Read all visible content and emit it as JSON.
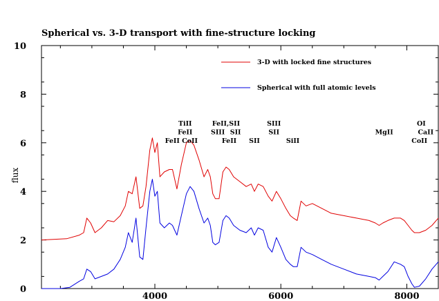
{
  "chart_data": {
    "type": "line",
    "title": "Spherical vs. 3-D transport with fine-structure locking",
    "xlabel": "",
    "ylabel": "flux",
    "xlim": [
      2200,
      8500
    ],
    "ylim": [
      0,
      10
    ],
    "x_ticks": [
      4000,
      6000,
      8000
    ],
    "y_ticks": [
      0,
      2,
      4,
      6,
      8,
      10
    ],
    "grid": false,
    "legend_position": "top-right",
    "series": [
      {
        "name": "3-D with locked fine structures",
        "color": "#e00000",
        "x": [
          2200,
          2600,
          2800,
          2870,
          2920,
          2980,
          3050,
          3150,
          3250,
          3350,
          3450,
          3530,
          3580,
          3640,
          3700,
          3760,
          3810,
          3860,
          3920,
          3960,
          4000,
          4040,
          4080,
          4150,
          4230,
          4280,
          4350,
          4420,
          4500,
          4560,
          4620,
          4700,
          4780,
          4840,
          4880,
          4920,
          4960,
          5020,
          5080,
          5130,
          5180,
          5250,
          5350,
          5450,
          5530,
          5580,
          5640,
          5720,
          5800,
          5860,
          5930,
          6000,
          6080,
          6150,
          6200,
          6260,
          6320,
          6400,
          6500,
          6650,
          6800,
          7000,
          7200,
          7400,
          7500,
          7560,
          7620,
          7700,
          7800,
          7900,
          7960,
          8020,
          8080,
          8120,
          8200,
          8300,
          8400,
          8500
        ],
        "y": [
          2.0,
          2.05,
          2.2,
          2.3,
          2.9,
          2.7,
          2.3,
          2.5,
          2.8,
          2.75,
          3.0,
          3.4,
          4.0,
          3.9,
          4.6,
          3.3,
          3.4,
          4.2,
          5.7,
          6.2,
          5.6,
          6.0,
          4.6,
          4.8,
          4.9,
          4.9,
          4.1,
          5.1,
          6.0,
          6.1,
          5.9,
          5.3,
          4.6,
          4.9,
          4.6,
          3.9,
          3.7,
          3.7,
          4.8,
          5.0,
          4.9,
          4.6,
          4.4,
          4.2,
          4.3,
          4.0,
          4.3,
          4.2,
          3.8,
          3.6,
          4.0,
          3.7,
          3.3,
          3.0,
          2.9,
          2.8,
          3.6,
          3.4,
          3.5,
          3.3,
          3.1,
          3.0,
          2.9,
          2.8,
          2.7,
          2.6,
          2.7,
          2.8,
          2.9,
          2.9,
          2.8,
          2.6,
          2.4,
          2.3,
          2.3,
          2.4,
          2.6,
          2.9
        ]
      },
      {
        "name": "Spherical with full atomic levels",
        "color": "#0000e0",
        "x": [
          2200,
          2500,
          2650,
          2800,
          2870,
          2920,
          2980,
          3050,
          3150,
          3250,
          3350,
          3450,
          3530,
          3580,
          3640,
          3700,
          3760,
          3810,
          3860,
          3920,
          3960,
          4000,
          4040,
          4080,
          4150,
          4230,
          4280,
          4350,
          4420,
          4500,
          4560,
          4620,
          4700,
          4780,
          4840,
          4880,
          4920,
          4960,
          5020,
          5080,
          5130,
          5180,
          5250,
          5350,
          5450,
          5530,
          5580,
          5640,
          5720,
          5800,
          5860,
          5930,
          6000,
          6080,
          6150,
          6200,
          6260,
          6320,
          6400,
          6500,
          6650,
          6800,
          7000,
          7200,
          7400,
          7500,
          7560,
          7620,
          7700,
          7800,
          7900,
          7960,
          8020,
          8080,
          8120,
          8200,
          8300,
          8400,
          8500
        ],
        "y": [
          0.0,
          0.0,
          0.05,
          0.3,
          0.4,
          0.8,
          0.7,
          0.4,
          0.5,
          0.6,
          0.8,
          1.2,
          1.7,
          2.3,
          1.9,
          2.9,
          1.3,
          1.2,
          2.5,
          4.0,
          4.5,
          3.8,
          4.0,
          2.7,
          2.5,
          2.7,
          2.6,
          2.2,
          3.0,
          3.9,
          4.2,
          4.0,
          3.3,
          2.7,
          2.9,
          2.6,
          1.9,
          1.8,
          1.9,
          2.8,
          3.0,
          2.9,
          2.6,
          2.4,
          2.3,
          2.5,
          2.2,
          2.5,
          2.4,
          1.7,
          1.5,
          2.1,
          1.7,
          1.2,
          1.0,
          0.9,
          0.9,
          1.7,
          1.5,
          1.4,
          1.2,
          1.0,
          0.8,
          0.6,
          0.5,
          0.45,
          0.35,
          0.5,
          0.7,
          1.1,
          1.0,
          0.9,
          0.5,
          0.2,
          0.05,
          0.1,
          0.4,
          0.8,
          1.1
        ]
      }
    ],
    "annotations": [
      {
        "text": "TiII",
        "x": 4480,
        "y": 6.7
      },
      {
        "text": "FeII",
        "x": 4480,
        "y": 6.35
      },
      {
        "text": "FeII CoII",
        "x": 4420,
        "y": 6.0
      },
      {
        "text": "FeII,SII",
        "x": 5130,
        "y": 6.7
      },
      {
        "text": "SIII",
        "x": 5000,
        "y": 6.35
      },
      {
        "text": "SII",
        "x": 5280,
        "y": 6.35
      },
      {
        "text": "FeII",
        "x": 5180,
        "y": 6.0
      },
      {
        "text": "SIII",
        "x": 5890,
        "y": 6.7
      },
      {
        "text": "SII",
        "x": 5890,
        "y": 6.35
      },
      {
        "text": "SII",
        "x": 5580,
        "y": 6.0
      },
      {
        "text": "SiII",
        "x": 6190,
        "y": 6.0
      },
      {
        "text": "MgII",
        "x": 7640,
        "y": 6.35
      },
      {
        "text": "OI",
        "x": 8230,
        "y": 6.7
      },
      {
        "text": "CaII",
        "x": 8300,
        "y": 6.35
      },
      {
        "text": "CoII",
        "x": 8200,
        "y": 6.0
      }
    ]
  }
}
